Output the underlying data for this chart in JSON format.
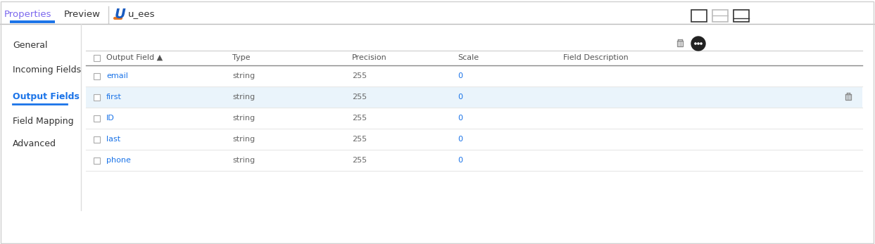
{
  "bg_color": "#ffffff",
  "outer_border_color": "#d0d0d0",
  "tab_active": "Properties",
  "tab_inactive": "Preview",
  "tab_active_color": "#7b68ee",
  "tab_inactive_color": "#333333",
  "tab_underline_color": "#1a73e8",
  "header_divider_color": "#bbbbbb",
  "title_text": "u_ees",
  "title_color": "#333333",
  "sidebar_items": [
    "General",
    "Incoming Fields",
    "Output Fields",
    "Field Mapping",
    "Advanced"
  ],
  "sidebar_active": "Output Fields",
  "sidebar_active_color": "#1a73e8",
  "sidebar_active_underline": "#1a73e8",
  "sidebar_inactive_color": "#333333",
  "sidebar_divider_color": "#dddddd",
  "columns": [
    "Output Field ▲",
    "Type",
    "Precision",
    "Scale",
    "Field Description"
  ],
  "header_text_color": "#555555",
  "rows": [
    {
      "name": "email",
      "type": "string",
      "precision": "255",
      "scale": "0",
      "highlighted": false
    },
    {
      "name": "first",
      "type": "string",
      "precision": "255",
      "scale": "0",
      "highlighted": true
    },
    {
      "name": "ID",
      "type": "string",
      "precision": "255",
      "scale": "0",
      "highlighted": false
    },
    {
      "name": "last",
      "type": "string",
      "precision": "255",
      "scale": "0",
      "highlighted": false
    },
    {
      "name": "phone",
      "type": "string",
      "precision": "255",
      "scale": "0",
      "highlighted": false
    }
  ],
  "row_highlight_color": "#eaf4fb",
  "row_normal_color": "#ffffff",
  "field_name_color": "#1a73e8",
  "field_value_color": "#666666",
  "scale_color": "#1a73e8",
  "divider_color": "#e8e8e8",
  "checkbox_border_color": "#aaaaaa",
  "icon_trash_color": "#666666",
  "union_icon_blue": "#1a5bbf",
  "union_icon_orange": "#e87722",
  "win_icon_dark": "#333333",
  "win_icon_light": "#bbbbbb"
}
